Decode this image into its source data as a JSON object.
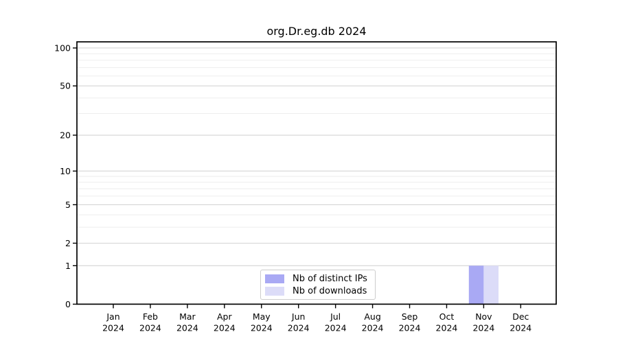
{
  "chart_data": {
    "type": "bar",
    "title": "org.Dr.eg.db 2024",
    "categories": [
      "Jan 2024",
      "Feb 2024",
      "Mar 2024",
      "Apr 2024",
      "May 2024",
      "Jun 2024",
      "Jul 2024",
      "Aug 2024",
      "Sep 2024",
      "Oct 2024",
      "Nov 2024",
      "Dec 2024"
    ],
    "series": [
      {
        "name": "Nb of distinct IPs",
        "color": "#a9a9f4",
        "values": [
          0,
          0,
          0,
          0,
          0,
          0,
          0,
          0,
          0,
          0,
          1,
          0
        ]
      },
      {
        "name": "Nb of downloads",
        "color": "#dcdcf8",
        "values": [
          0,
          0,
          0,
          0,
          0,
          0,
          0,
          0,
          0,
          0,
          1,
          0
        ]
      }
    ],
    "y_scale": "log1p",
    "y_ticks": [
      0,
      1,
      2,
      5,
      10,
      20,
      50,
      100
    ],
    "y_minor_gridlines": [
      3,
      4,
      6,
      7,
      8,
      9,
      30,
      40,
      60,
      70,
      80,
      90
    ],
    "ylim": [
      0,
      112
    ],
    "xlabel": "",
    "ylabel": "",
    "grid": true,
    "legend_position": "lower center",
    "colors": {
      "major_grid": "#d4d4d4",
      "minor_grid": "#eeeeee",
      "axis": "#000000",
      "text": "#000000",
      "legend_border": "#cccccc",
      "background": "#ffffff"
    }
  }
}
